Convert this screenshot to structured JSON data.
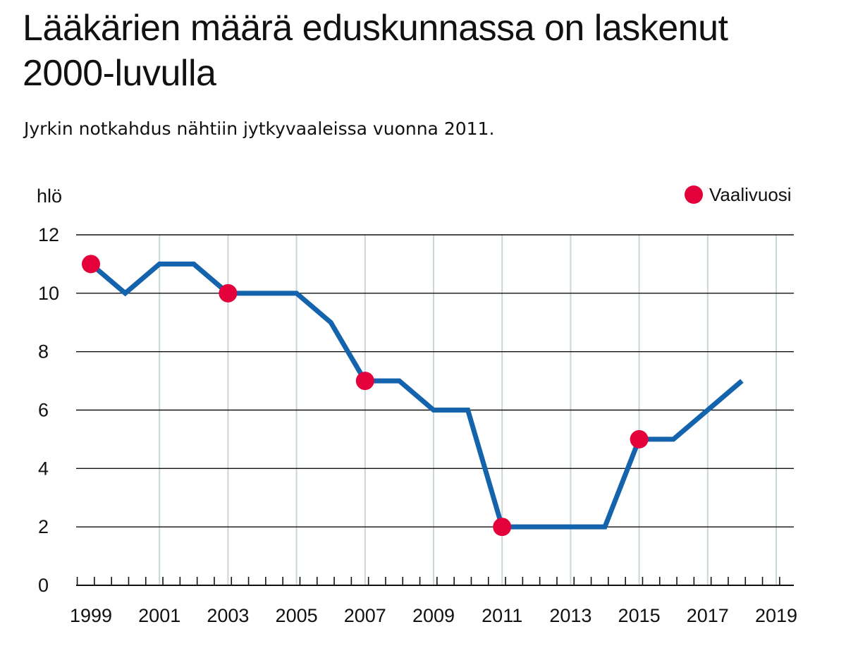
{
  "title": "Lääkärien määrä eduskunnassa on laskenut 2000-luvulla",
  "subtitle": "Jyrkin notkahdus nähtiin jytkyvaaleissa vuonna 2011.",
  "colors": {
    "line": "#1463ad",
    "marker": "#e4003a",
    "grid": "#111111",
    "vgrid": "#c9d6dc"
  },
  "chart_data": {
    "type": "line",
    "ylabel": "hlö",
    "ylim": [
      0,
      12
    ],
    "yticks": [
      0,
      2,
      4,
      6,
      8,
      10,
      12
    ],
    "xlim": [
      1999,
      2019
    ],
    "xticks": [
      1999,
      2001,
      2003,
      2005,
      2007,
      2009,
      2011,
      2013,
      2015,
      2017,
      2019
    ],
    "series": [
      {
        "x": [
          1999,
          2000,
          2001,
          2002,
          2003,
          2004,
          2005,
          2006,
          2007,
          2008,
          2009,
          2010,
          2011,
          2012,
          2013,
          2014,
          2015,
          2016,
          2017,
          2018
        ],
        "values": [
          11,
          10,
          11,
          11,
          10,
          10,
          10,
          9,
          7,
          7,
          6,
          6,
          2,
          2,
          2,
          2,
          5,
          5,
          6,
          7
        ]
      }
    ],
    "markers": {
      "name": "Vaalivuosi",
      "x": [
        1999,
        2003,
        2007,
        2011,
        2015
      ],
      "values": [
        11,
        10,
        7,
        2,
        5
      ]
    },
    "legend": "top-right",
    "grid": true
  }
}
